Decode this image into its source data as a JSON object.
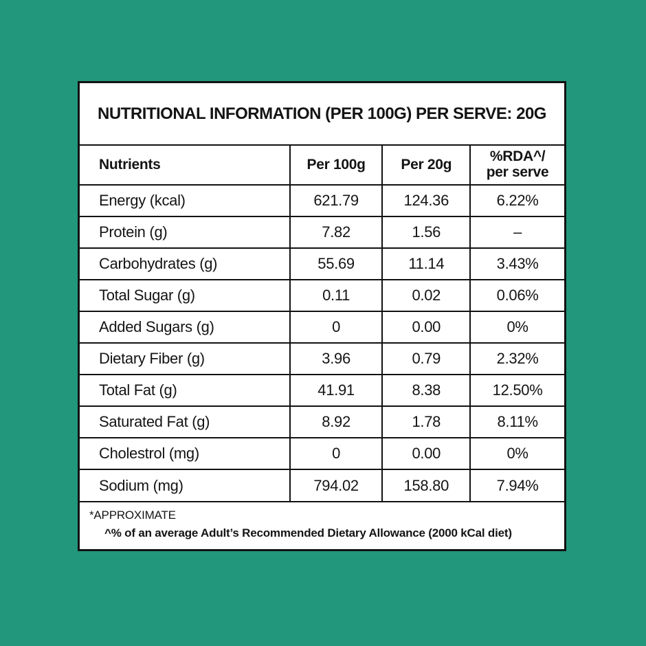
{
  "colors": {
    "background": "#22977C",
    "card-bg": "#FFFFFF",
    "border": "#111111",
    "text": "#141414"
  },
  "label": {
    "title": "NUTRITIONAL INFORMATION (PER 100G) PER SERVE: 20G",
    "headers": {
      "nutrients": "Nutrients",
      "per_100g": "Per 100g",
      "per_20g": "Per 20g",
      "rda_line1": "%RDA^/",
      "rda_line2": "per serve"
    },
    "rows": [
      {
        "nutrient": "Energy (kcal)",
        "per_100g": "621.79",
        "per_20g": "124.36",
        "rda": "6.22%"
      },
      {
        "nutrient": "Protein (g)",
        "per_100g": "7.82",
        "per_20g": "1.56",
        "rda": "–"
      },
      {
        "nutrient": "Carbohydrates (g)",
        "per_100g": "55.69",
        "per_20g": "11.14",
        "rda": "3.43%"
      },
      {
        "nutrient": "Total Sugar (g)",
        "per_100g": "0.11",
        "per_20g": "0.02",
        "rda": "0.06%"
      },
      {
        "nutrient": "Added Sugars (g)",
        "per_100g": "0",
        "per_20g": "0.00",
        "rda": "0%"
      },
      {
        "nutrient": "Dietary Fiber (g)",
        "per_100g": "3.96",
        "per_20g": "0.79",
        "rda": "2.32%"
      },
      {
        "nutrient": "Total Fat (g)",
        "per_100g": "41.91",
        "per_20g": "8.38",
        "rda": "12.50%"
      },
      {
        "nutrient": "Saturated Fat (g)",
        "per_100g": "8.92",
        "per_20g": "1.78",
        "rda": "8.11%"
      },
      {
        "nutrient": "Cholestrol (mg)",
        "per_100g": "0",
        "per_20g": "0.00",
        "rda": "0%"
      },
      {
        "nutrient": "Sodium (mg)",
        "per_100g": "794.02",
        "per_20g": "158.80",
        "rda": "7.94%"
      }
    ],
    "footnotes": {
      "approximate": "*APPROXIMATE",
      "rda_note": "^% of an average Adult’s Recommended Dietary Allowance (2000 kCal diet)"
    }
  }
}
